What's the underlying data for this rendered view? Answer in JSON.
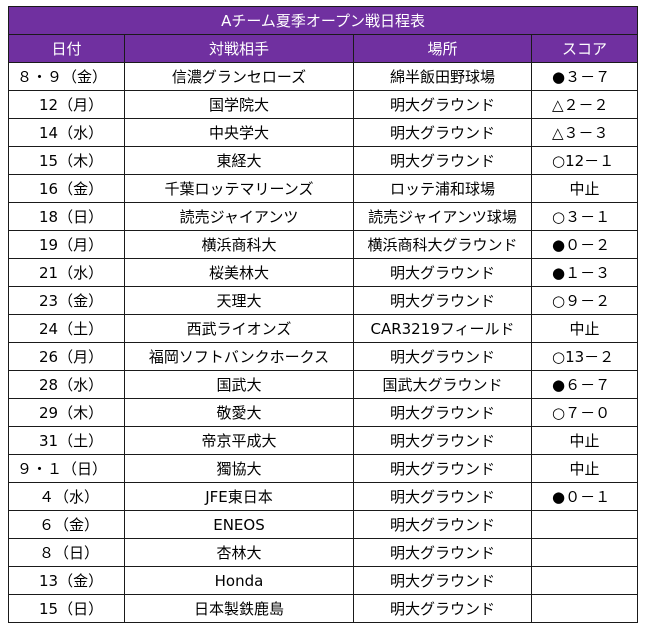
{
  "title": "Aチーム夏季オープン戦日程表",
  "headers": {
    "date": "日付",
    "opponent": "対戦相手",
    "venue": "場所",
    "score": "スコア"
  },
  "colors": {
    "header_bg": "#7030a0",
    "header_text": "#ffffff",
    "grid": "#1a1a1a"
  },
  "rows": [
    {
      "date": "８・９（金）",
      "opponent": "信濃グランセローズ",
      "venue": "綿半飯田野球場",
      "score": "●３－７"
    },
    {
      "date": "12（月）",
      "opponent": "国学院大",
      "venue": "明大グラウンド",
      "score": "△２－２"
    },
    {
      "date": "14（水）",
      "opponent": "中央学大",
      "venue": "明大グラウンド",
      "score": "△３－３"
    },
    {
      "date": "15（木）",
      "opponent": "東経大",
      "venue": "明大グラウンド",
      "score": "○12－１"
    },
    {
      "date": "16（金）",
      "opponent": "千葉ロッテマリーンズ",
      "venue": "ロッテ浦和球場",
      "score": "中止"
    },
    {
      "date": "18（日）",
      "opponent": "読売ジャイアンツ",
      "venue": "読売ジャイアンツ球場",
      "score": "○３－１"
    },
    {
      "date": "19（月）",
      "opponent": "横浜商科大",
      "venue": "横浜商科大グラウンド",
      "score": "●０－２"
    },
    {
      "date": "21（水）",
      "opponent": "桜美林大",
      "venue": "明大グラウンド",
      "score": "●１－３"
    },
    {
      "date": "23（金）",
      "opponent": "天理大",
      "venue": "明大グラウンド",
      "score": "○９－２"
    },
    {
      "date": "24（土）",
      "opponent": "西武ライオンズ",
      "venue": "CAR3219フィールド",
      "score": "中止"
    },
    {
      "date": "26（月）",
      "opponent": "福岡ソフトバンクホークス",
      "venue": "明大グラウンド",
      "score": "○13－２"
    },
    {
      "date": "28（水）",
      "opponent": "国武大",
      "venue": "国武大グラウンド",
      "score": "●６－７"
    },
    {
      "date": "29（木）",
      "opponent": "敬愛大",
      "venue": "明大グラウンド",
      "score": "○７－０"
    },
    {
      "date": "31（土）",
      "opponent": "帝京平成大",
      "venue": "明大グラウンド",
      "score": "中止"
    },
    {
      "date": "９・１（日）",
      "opponent": "獨協大",
      "venue": "明大グラウンド",
      "score": "中止"
    },
    {
      "date": "４（水）",
      "opponent": "JFE東日本",
      "venue": "明大グラウンド",
      "score": "●０－１"
    },
    {
      "date": "６（金）",
      "opponent": "ENEOS",
      "venue": "明大グラウンド",
      "score": ""
    },
    {
      "date": "８（日）",
      "opponent": "杏林大",
      "venue": "明大グラウンド",
      "score": ""
    },
    {
      "date": "13（金）",
      "opponent": "Honda",
      "venue": "明大グラウンド",
      "score": ""
    },
    {
      "date": "15（日）",
      "opponent": "日本製鉄鹿島",
      "venue": "明大グラウンド",
      "score": ""
    }
  ]
}
